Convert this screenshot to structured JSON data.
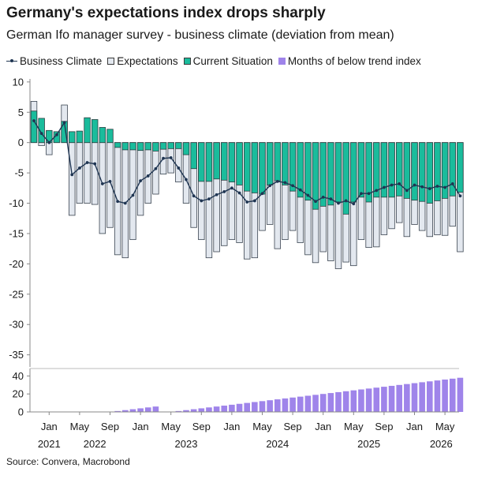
{
  "title": "Germany's expectations index drops sharply",
  "subtitle": "German Ifo manager survey - business climate (deviation from mean)",
  "source": "Source: Convera, Macrobond",
  "colors": {
    "business_climate": "#1f3552",
    "expectations_fill": "#e3e8ef",
    "expectations_stroke": "#3a4450",
    "current_fill": "#1abc9c",
    "current_stroke": "#2c3e40",
    "months_fill": "#9f84ea"
  },
  "legend": [
    {
      "label": "Business Climate",
      "icon": "line-marker"
    },
    {
      "label": "Expectations",
      "icon": "light-grey-box"
    },
    {
      "label": "Current Situation",
      "icon": "teal-box"
    },
    {
      "label": "Months of below trend index",
      "icon": "purple-box"
    }
  ],
  "chart_data": [
    {
      "type": "bar",
      "panel": "main",
      "x_start": "2020-11",
      "y_ticks": [
        10,
        5,
        0,
        -5,
        -10,
        -15,
        -20,
        -25,
        -30,
        -35
      ],
      "ylim": [
        -37,
        10.5
      ],
      "series": [
        {
          "name": "Expectations",
          "type": "bar",
          "values": [
            6.8,
            -0.5,
            -2,
            1,
            6.2,
            -12,
            -10,
            -10,
            -10.2,
            -15,
            -14,
            -18.5,
            -19,
            -16,
            -12,
            -10,
            -8.5,
            -5.2,
            -5,
            -6.5,
            -10,
            -14,
            -16,
            -19,
            -18,
            -17,
            -16,
            -16.5,
            -19.2,
            -19,
            -14.5,
            -13.5,
            -17.5,
            -16,
            -14.5,
            -16.5,
            -18.5,
            -19.8,
            -18,
            -19.5,
            -20.8,
            -19.7,
            -20.3,
            -16,
            -17.3,
            -17.2,
            -15.2,
            -14.2,
            -13.2,
            -15.5,
            -13.5,
            -14.5,
            -15.5,
            -15.2,
            -15.3,
            -13.8,
            -18
          ]
        },
        {
          "name": "Current Situation",
          "type": "bar",
          "values": [
            5.2,
            4.0,
            2.0,
            1.8,
            3.5,
            1.8,
            1.9,
            4.1,
            3.8,
            2.5,
            2.2,
            -0.8,
            -1.2,
            -1.2,
            -1.3,
            -1.2,
            -1.4,
            -1.1,
            -1.0,
            -1.0,
            -2.0,
            -4.3,
            -6.4,
            -6.4,
            -6.0,
            -6.2,
            -6.5,
            -7.0,
            -8.0,
            -8.3,
            -8.5,
            -7.0,
            -6.3,
            -7.0,
            -8.0,
            -9.0,
            -9.5,
            -11.0,
            -10.5,
            -10.3,
            -9.8,
            -11.8,
            -9.8,
            -9.0,
            -9.8,
            -9.0,
            -9.0,
            -9.0,
            -8.8,
            -9.2,
            -9.5,
            -9.7,
            -10.0,
            -9.6,
            -9.2,
            -8.8,
            -8.2
          ]
        },
        {
          "name": "Business Climate",
          "type": "line",
          "values": [
            3.6,
            1.5,
            0.0,
            1.3,
            3.3,
            -5.3,
            -4.2,
            -3.3,
            -3.5,
            -6.8,
            -6.4,
            -9.7,
            -10.0,
            -8.7,
            -6.3,
            -5.5,
            -4.3,
            -2.6,
            -2.5,
            -4.2,
            -6.1,
            -8.8,
            -9.6,
            -9.3,
            -8.6,
            -8.1,
            -7.5,
            -8.3,
            -9.8,
            -9.6,
            -8.4,
            -7.1,
            -6.4,
            -6.6,
            -7.1,
            -7.8,
            -8.7,
            -9.7,
            -9.0,
            -9.3,
            -10.0,
            -9.6,
            -10.1,
            -8.4,
            -8.4,
            -7.9,
            -7.4,
            -7.0,
            -6.8,
            -7.9,
            -7.0,
            -7.3,
            -7.6,
            -7.2,
            -7.4,
            -6.8,
            -8.8
          ]
        }
      ]
    },
    {
      "type": "bar",
      "panel": "lower",
      "y_ticks": [
        40,
        20,
        0
      ],
      "ylim": [
        0,
        43
      ],
      "series": [
        {
          "name": "Months of below trend index",
          "values": [
            0,
            0,
            0,
            0,
            0,
            0,
            0,
            0,
            0,
            0,
            0,
            1,
            2,
            3,
            4,
            5,
            6,
            0,
            0,
            1,
            2,
            3,
            4,
            5,
            6,
            7,
            8,
            9,
            10,
            11,
            12,
            13,
            14,
            15,
            16,
            17,
            18,
            19,
            20,
            21,
            22,
            23,
            24,
            25,
            26,
            27,
            28,
            29,
            30,
            31,
            32,
            33,
            34,
            35,
            36,
            37,
            38
          ]
        }
      ]
    }
  ],
  "x_axis": {
    "month_labels": [
      {
        "text": "Jan",
        "index": 2
      },
      {
        "text": "May",
        "index": 6
      },
      {
        "text": "Sep",
        "index": 10
      },
      {
        "text": "Jan",
        "index": 14
      },
      {
        "text": "May",
        "index": 18
      },
      {
        "text": "Sep",
        "index": 22
      },
      {
        "text": "Jan",
        "index": 26
      },
      {
        "text": "May",
        "index": 30
      },
      {
        "text": "Sep",
        "index": 34
      },
      {
        "text": "Jan",
        "index": 38
      },
      {
        "text": "May",
        "index": 42
      },
      {
        "text": "Sep",
        "index": 46
      },
      {
        "text": "Jan",
        "index": 50
      },
      {
        "text": "May",
        "index": 54
      }
    ],
    "year_labels": [
      {
        "text": "2021",
        "index": 2
      },
      {
        "text": "2022",
        "index": 8
      },
      {
        "text": "2023",
        "index": 20
      },
      {
        "text": "2024",
        "index": 32
      },
      {
        "text": "2025",
        "index": 44
      },
      {
        "text": "2026",
        "index": 53.5
      }
    ]
  }
}
